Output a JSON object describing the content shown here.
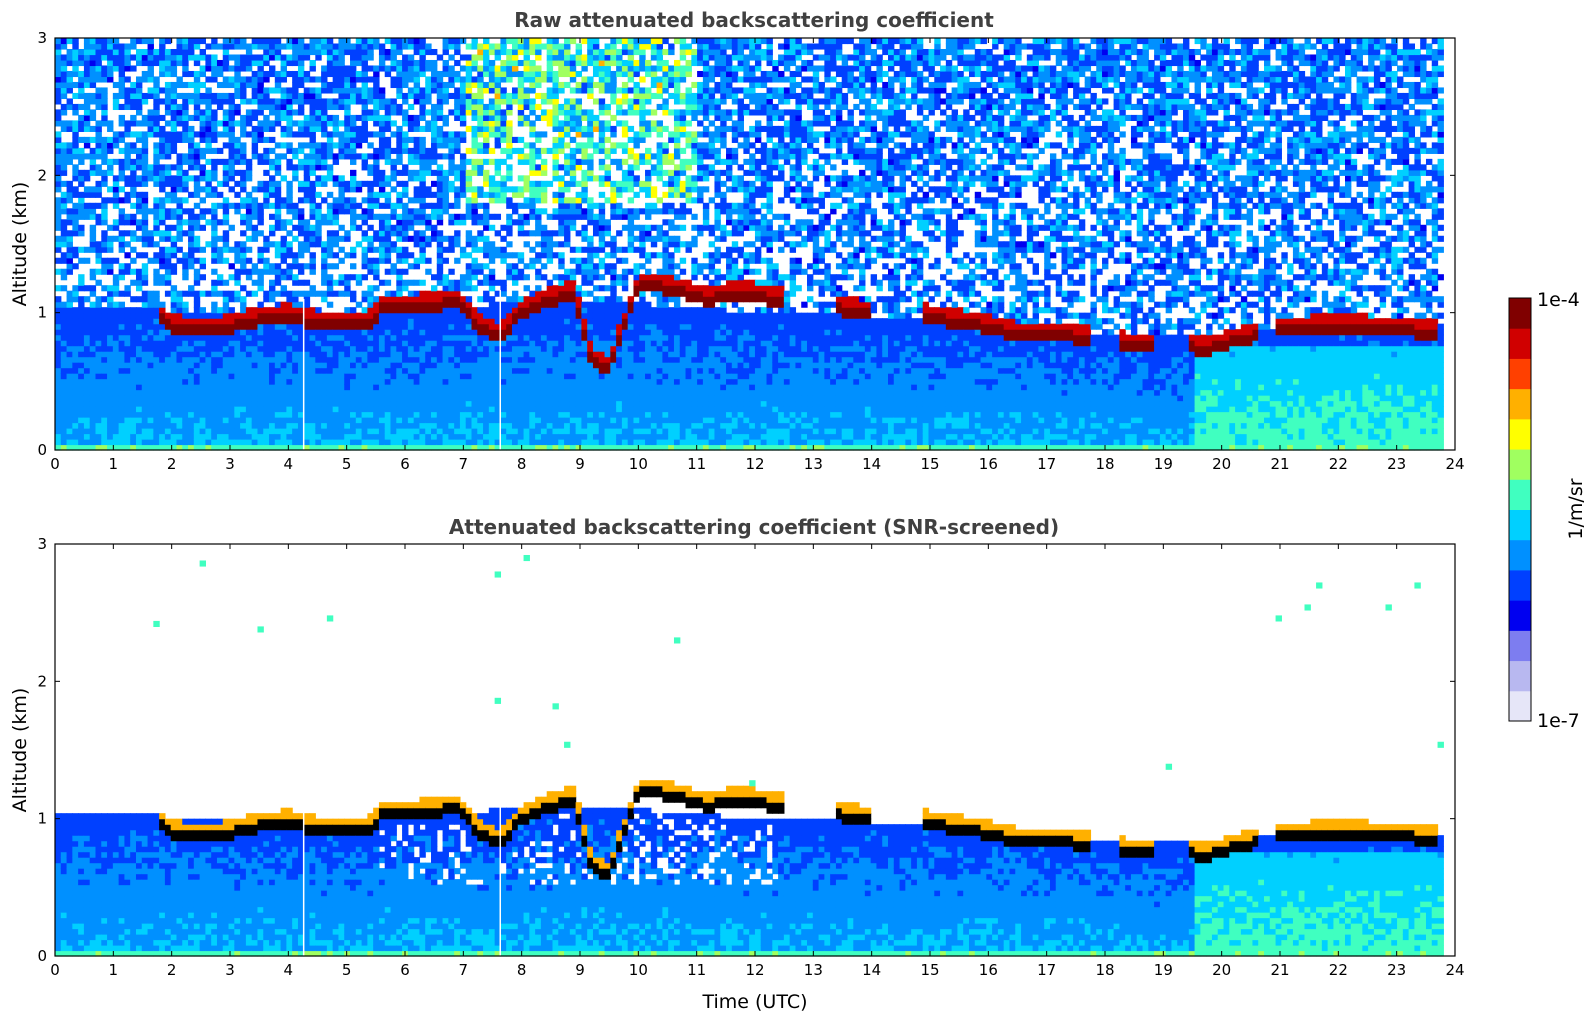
{
  "chart_data": [
    {
      "type": "heatmap",
      "title": "Raw attenuated backscattering coefficient",
      "xlabel": "",
      "ylabel": "Altitude (km)",
      "xlim": [
        0,
        24
      ],
      "ylim": [
        0,
        3
      ],
      "xticks": [
        "0",
        "1",
        "2",
        "3",
        "4",
        "5",
        "6",
        "7",
        "8",
        "9",
        "10",
        "11",
        "12",
        "13",
        "14",
        "15",
        "16",
        "17",
        "18",
        "19",
        "20",
        "21",
        "22",
        "23",
        "24"
      ],
      "yticks": [
        "0",
        "1",
        "2",
        "3"
      ],
      "screened": false
    },
    {
      "type": "heatmap",
      "title": "Attenuated backscattering coefficient (SNR-screened)",
      "xlabel": "Time (UTC)",
      "ylabel": "Altitude (km)",
      "xlim": [
        0,
        24
      ],
      "ylim": [
        0,
        3
      ],
      "xticks": [
        "0",
        "1",
        "2",
        "3",
        "4",
        "5",
        "6",
        "7",
        "8",
        "9",
        "10",
        "11",
        "12",
        "13",
        "14",
        "15",
        "16",
        "17",
        "18",
        "19",
        "20",
        "21",
        "22",
        "23",
        "24"
      ],
      "yticks": [
        "0",
        "1",
        "2",
        "3"
      ],
      "screened": true
    }
  ],
  "profile": {
    "data_end_hour": 23.8,
    "gaps_hours": [
      4.25,
      7.62
    ],
    "aerosol_top_km": [
      [
        0,
        1.03
      ],
      [
        1.8,
        1.02
      ],
      [
        4,
        1.0
      ],
      [
        5.4,
        1.0
      ],
      [
        7,
        1.05
      ],
      [
        9,
        1.1
      ],
      [
        10.5,
        1.05
      ],
      [
        12,
        1.0
      ],
      [
        14,
        0.98
      ],
      [
        16,
        0.95
      ],
      [
        17,
        0.9
      ],
      [
        18,
        0.85
      ],
      [
        19,
        0.82
      ],
      [
        20,
        0.85
      ],
      [
        21,
        0.9
      ],
      [
        23.8,
        0.9
      ]
    ],
    "cloud_base_km": [
      [
        1.75,
        0.95
      ],
      [
        2.0,
        0.85
      ],
      [
        2.5,
        0.82
      ],
      [
        3,
        0.85
      ],
      [
        3.5,
        0.9
      ],
      [
        4.0,
        0.93
      ],
      [
        4.5,
        0.88
      ],
      [
        5.0,
        0.87
      ],
      [
        5.4,
        0.88
      ],
      [
        5.6,
        0.98
      ],
      [
        6.2,
        1.0
      ],
      [
        6.9,
        1.03
      ],
      [
        7.3,
        0.85
      ],
      [
        7.6,
        0.78
      ],
      [
        8.0,
        0.95
      ],
      [
        8.5,
        1.05
      ],
      [
        8.9,
        1.1
      ],
      [
        9.2,
        0.6
      ],
      [
        9.5,
        0.55
      ],
      [
        9.7,
        0.8
      ],
      [
        10.0,
        1.15
      ],
      [
        10.3,
        1.15
      ],
      [
        10.6,
        1.12
      ],
      [
        11.2,
        1.05
      ],
      [
        11.5,
        1.08
      ],
      [
        12.0,
        1.08
      ],
      [
        12.3,
        1.05
      ],
      [
        13.5,
        0.98
      ],
      [
        13.8,
        0.96
      ],
      [
        15.0,
        0.92
      ],
      [
        15.3,
        0.9
      ],
      [
        16.0,
        0.85
      ],
      [
        16.5,
        0.8
      ],
      [
        17.0,
        0.8
      ],
      [
        17.5,
        0.78
      ],
      [
        18.3,
        0.72
      ],
      [
        18.6,
        0.72
      ],
      [
        19.5,
        0.7
      ],
      [
        19.8,
        0.7
      ],
      [
        21.0,
        0.83
      ],
      [
        22.0,
        0.85
      ],
      [
        23.0,
        0.83
      ],
      [
        23.7,
        0.81
      ]
    ],
    "cloud_thickness_km": 0.08
  },
  "colorbar": {
    "colors": [
      "#e6e6f8",
      "#b8b8f0",
      "#7d7df0",
      "#0000f0",
      "#0040ff",
      "#0090ff",
      "#00d0ff",
      "#40ffc0",
      "#a0ff60",
      "#ffff00",
      "#ffb000",
      "#ff4000",
      "#d00000",
      "#800000"
    ],
    "max_label": "1e-4",
    "min_label": "1e-7",
    "unit_label": "1/m/sr"
  }
}
